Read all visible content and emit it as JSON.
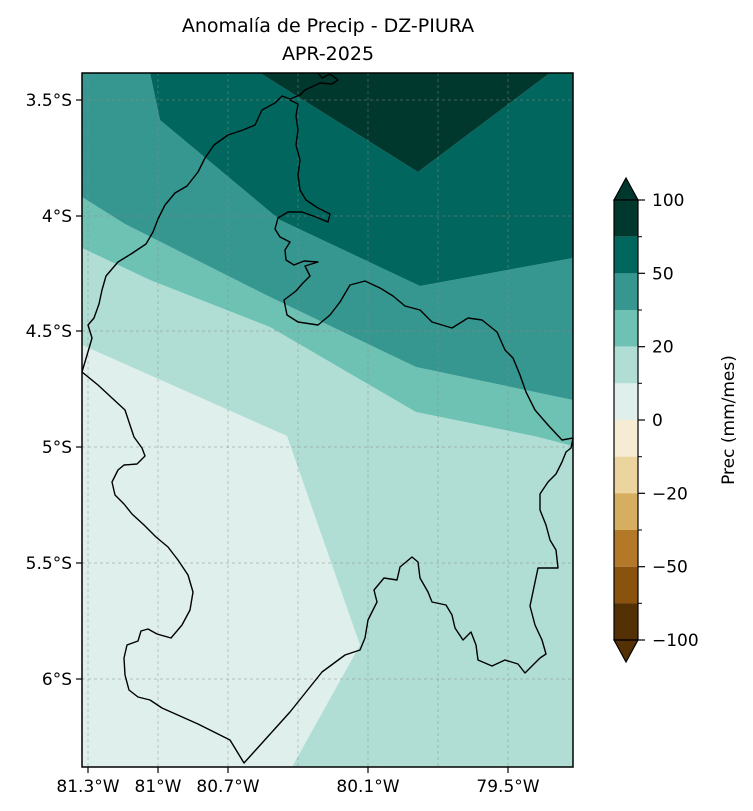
{
  "title": {
    "line1": "Anomalía de Precip - DZ-PIURA",
    "line2": "APR-2025"
  },
  "map": {
    "type": "filled-contour",
    "lon_ticks": [
      "81.3°W",
      "81°W",
      "80.7°W",
      "80.1°W",
      "79.5°W"
    ],
    "lat_ticks": [
      "3.5°S",
      "4°S",
      "4.5°S",
      "5°S",
      "5.5°S",
      "6°S"
    ],
    "gridlines": true
  },
  "colorbar": {
    "label": "Prec (mm/mes)",
    "ticks": [
      "100",
      "50",
      "20",
      "0",
      "−20",
      "−50",
      "−100"
    ],
    "levels_top_to_bottom": [
      "#01382e",
      "#01665e",
      "#35978f",
      "#6dc2b3",
      "#b0ded5",
      "#dff0ec",
      "#f6ebd3",
      "#ebd49e",
      "#d5ae60",
      "#b37828",
      "#8a520f",
      "#543005"
    ],
    "extend": "both"
  },
  "colors": {
    "above_100": "#01382e",
    "b50_100": "#01665e",
    "b30_50": "#35978f",
    "b20_30": "#6dc2b3",
    "b10_20": "#b0ded5",
    "b0_10": "#dff0ec"
  }
}
